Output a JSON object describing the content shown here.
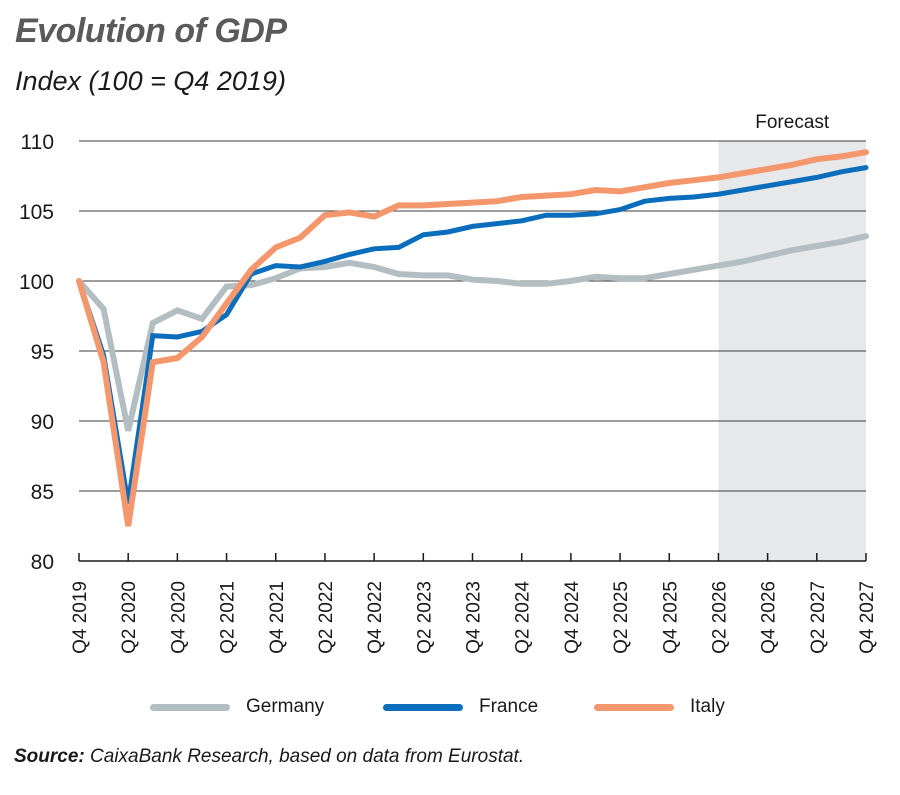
{
  "chart_data": {
    "type": "line",
    "title": "Evolution of GDP",
    "subtitle": "Index (100 = Q4 2019)",
    "xlabel": "",
    "ylabel": "",
    "ylim": [
      80,
      110
    ],
    "yticks": [
      80,
      85,
      90,
      95,
      100,
      105,
      110
    ],
    "grid": true,
    "legend_position": "bottom",
    "x": [
      "Q4 2019",
      "Q1 2020",
      "Q2 2020",
      "Q3 2020",
      "Q4 2020",
      "Q1 2021",
      "Q2 2021",
      "Q3 2021",
      "Q4 2021",
      "Q1 2022",
      "Q2 2022",
      "Q3 2022",
      "Q4 2022",
      "Q1 2023",
      "Q2 2023",
      "Q3 2023",
      "Q4 2023",
      "Q1 2024",
      "Q2 2024",
      "Q3 2024",
      "Q4 2024",
      "Q1 2025",
      "Q2 2025",
      "Q3 2025",
      "Q4 2025",
      "Q1 2026",
      "Q2 2026",
      "Q3 2026",
      "Q4 2026",
      "Q1 2027",
      "Q2 2027",
      "Q3 2027",
      "Q4 2027"
    ],
    "xtick_labels": [
      "Q4 2019",
      "Q2 2020",
      "Q4 2020",
      "Q2 2021",
      "Q4 2021",
      "Q2 2022",
      "Q4 2022",
      "Q2 2023",
      "Q4 2023",
      "Q2 2024",
      "Q4 2024",
      "Q2 2025",
      "Q4 2025",
      "Q2 2026",
      "Q4 2026",
      "Q2 2027",
      "Q4 2027"
    ],
    "forecast": {
      "label": "Forecast",
      "start": "Q2 2026",
      "end": "Q4 2027",
      "color": "#e6e8ea"
    },
    "series": [
      {
        "name": "Germany",
        "color": "#b3bec2",
        "values": [
          100,
          98.0,
          89.3,
          97.0,
          97.9,
          97.3,
          99.6,
          99.7,
          100.2,
          100.9,
          101.0,
          101.3,
          101.0,
          100.5,
          100.4,
          100.4,
          100.1,
          100.0,
          99.8,
          99.8,
          100.0,
          100.3,
          100.2,
          100.2,
          100.5,
          100.8,
          101.1,
          101.4,
          101.8,
          102.2,
          102.5,
          102.8,
          103.2
        ]
      },
      {
        "name": "France",
        "color": "#0a6ebd",
        "values": [
          100,
          94.7,
          84.1,
          96.1,
          96.0,
          96.4,
          97.6,
          100.5,
          101.1,
          101.0,
          101.4,
          101.9,
          102.3,
          102.4,
          103.3,
          103.5,
          103.9,
          104.1,
          104.3,
          104.7,
          104.7,
          104.8,
          105.1,
          105.7,
          105.9,
          106.0,
          106.2,
          106.5,
          106.8,
          107.1,
          107.4,
          107.8,
          108.1
        ]
      },
      {
        "name": "Italy",
        "color": "#f4976c",
        "values": [
          100,
          94.2,
          82.5,
          94.2,
          94.5,
          96.0,
          98.4,
          100.8,
          102.4,
          103.1,
          104.7,
          104.9,
          104.6,
          105.4,
          105.4,
          105.5,
          105.6,
          105.7,
          106.0,
          106.1,
          106.2,
          106.5,
          106.4,
          106.7,
          107.0,
          107.2,
          107.4,
          107.7,
          108.0,
          108.3,
          108.7,
          108.9,
          109.2
        ]
      }
    ]
  },
  "source": {
    "label": "Source:",
    "text": " CaixaBank Research, based on data from Eurostat."
  }
}
